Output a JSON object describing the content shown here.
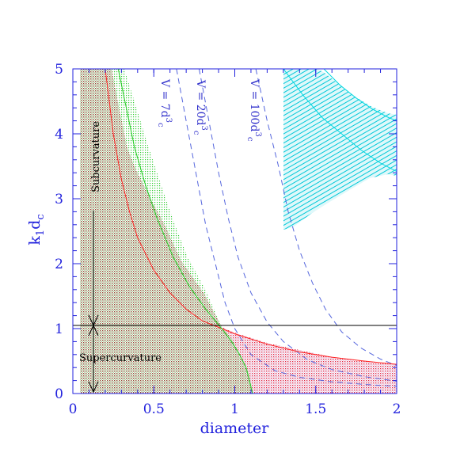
{
  "chart_data": {
    "type": "line",
    "title": "",
    "xlabel": "diameter",
    "ylabel_main": "k",
    "ylabel_sub1": "1",
    "ylabel_mid": "d",
    "ylabel_sub2": "c",
    "xlim": [
      0,
      2
    ],
    "ylim": [
      0,
      5
    ],
    "xticks": [
      0,
      0.5,
      1,
      1.5,
      2
    ],
    "xtick_labels": [
      "0",
      "0.5",
      "1",
      "1.5",
      "2"
    ],
    "yticks": [
      0,
      1,
      2,
      3,
      4,
      5
    ],
    "ytick_labels": [
      "0",
      "1",
      "2",
      "3",
      "4",
      "5"
    ],
    "horizontal_line": {
      "y": 1,
      "color": "#000000"
    },
    "annotations": {
      "subcurvature": "Subcurvature",
      "supercurvature": "Supercurvature"
    },
    "series": [
      {
        "name": "V = 7d",
        "label_sup": "3",
        "label_sub": "c",
        "style": "dashed",
        "color": "#5566dd",
        "points": [
          [
            0.64,
            5.0
          ],
          [
            0.7,
            4.2
          ],
          [
            0.76,
            3.4
          ],
          [
            0.82,
            2.6
          ],
          [
            0.88,
            2.0
          ],
          [
            0.94,
            1.4
          ],
          [
            1.0,
            1.0
          ],
          [
            1.1,
            0.6
          ],
          [
            1.25,
            0.35
          ],
          [
            1.4,
            0.25
          ],
          [
            1.6,
            0.18
          ],
          [
            1.8,
            0.14
          ],
          [
            2.0,
            0.11
          ]
        ]
      },
      {
        "name": "V = 20d",
        "label_sup": "3",
        "label_sub": "c",
        "style": "dashed",
        "color": "#5566dd",
        "points": [
          [
            0.78,
            5.0
          ],
          [
            0.84,
            4.2
          ],
          [
            0.9,
            3.4
          ],
          [
            0.96,
            2.7
          ],
          [
            1.02,
            2.1
          ],
          [
            1.1,
            1.55
          ],
          [
            1.2,
            1.1
          ],
          [
            1.3,
            0.8
          ],
          [
            1.45,
            0.52
          ],
          [
            1.6,
            0.37
          ],
          [
            1.8,
            0.26
          ],
          [
            2.0,
            0.19
          ]
        ]
      },
      {
        "name": "V = 100d",
        "label_sup": "3",
        "label_sub": "c",
        "style": "dashed",
        "color": "#5566dd",
        "points": [
          [
            1.13,
            5.0
          ],
          [
            1.2,
            4.2
          ],
          [
            1.27,
            3.5
          ],
          [
            1.33,
            2.8
          ],
          [
            1.4,
            2.2
          ],
          [
            1.48,
            1.7
          ],
          [
            1.56,
            1.3
          ],
          [
            1.66,
            0.95
          ],
          [
            1.78,
            0.7
          ],
          [
            1.9,
            0.53
          ],
          [
            2.0,
            0.43
          ]
        ]
      },
      {
        "name": "",
        "style": "solid",
        "color": "#ff2222",
        "points": [
          [
            0.2,
            5.0
          ],
          [
            0.25,
            4.0
          ],
          [
            0.3,
            3.3
          ],
          [
            0.35,
            2.8
          ],
          [
            0.4,
            2.4
          ],
          [
            0.5,
            1.9
          ],
          [
            0.6,
            1.55
          ],
          [
            0.7,
            1.3
          ],
          [
            0.8,
            1.12
          ],
          [
            0.92,
            1.0
          ],
          [
            1.0,
            0.92
          ],
          [
            1.2,
            0.76
          ],
          [
            1.4,
            0.64
          ],
          [
            1.6,
            0.56
          ],
          [
            1.8,
            0.5
          ],
          [
            2.0,
            0.45
          ]
        ]
      },
      {
        "name": "",
        "style": "solid",
        "color": "#22cc22",
        "points": [
          [
            0.28,
            5.0
          ],
          [
            0.33,
            4.4
          ],
          [
            0.38,
            3.8
          ],
          [
            0.45,
            3.2
          ],
          [
            0.52,
            2.7
          ],
          [
            0.62,
            2.1
          ],
          [
            0.72,
            1.65
          ],
          [
            0.82,
            1.3
          ],
          [
            0.92,
            1.0
          ],
          [
            0.98,
            0.8
          ],
          [
            1.03,
            0.6
          ],
          [
            1.07,
            0.4
          ],
          [
            1.09,
            0.2
          ],
          [
            1.11,
            0.0
          ]
        ]
      },
      {
        "name": "",
        "style": "solid",
        "color": "#00d8e0",
        "points": [
          [
            1.3,
            5.0
          ],
          [
            1.42,
            4.6
          ],
          [
            1.54,
            4.25
          ],
          [
            1.66,
            4.0
          ],
          [
            1.78,
            3.75
          ],
          [
            1.9,
            3.55
          ],
          [
            2.0,
            3.42
          ]
        ]
      },
      {
        "name": "",
        "style": "solid",
        "color": "#00d8e0",
        "points": [
          [
            1.55,
            5.0
          ],
          [
            1.65,
            4.75
          ],
          [
            1.75,
            4.55
          ],
          [
            1.85,
            4.38
          ],
          [
            1.95,
            4.25
          ],
          [
            2.0,
            4.2
          ]
        ]
      }
    ]
  }
}
